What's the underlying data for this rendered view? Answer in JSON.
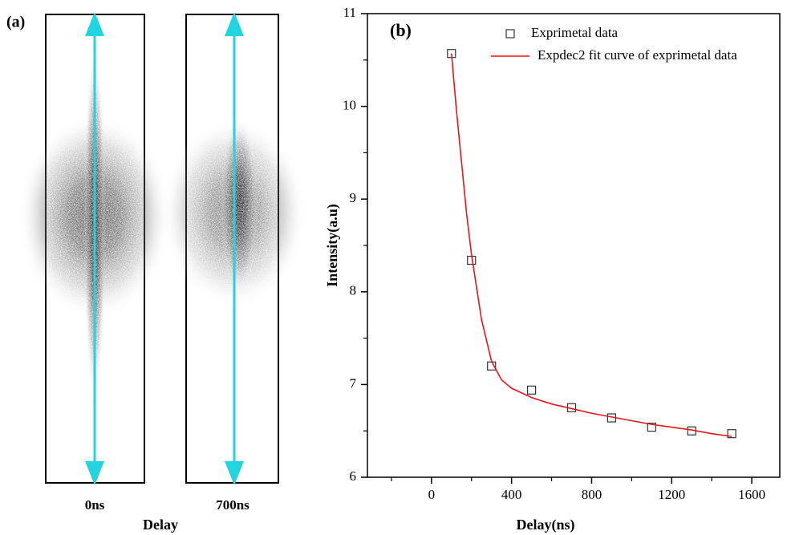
{
  "panel_a": {
    "label": "(a)",
    "captions": [
      "0ns",
      "700ns"
    ],
    "xlabel": "Delay"
  },
  "chart_data": {
    "type": "scatter",
    "title": "(b)",
    "xlabel": "Delay(ns)",
    "ylabel": "Intensity(a.u)",
    "xlim": [
      -320,
      1740
    ],
    "ylim": [
      6,
      11
    ],
    "xticks": [
      0,
      400,
      800,
      1200,
      1600
    ],
    "yticks": [
      6,
      7,
      8,
      9,
      10,
      11
    ],
    "xminorticks": [
      -200,
      200,
      600,
      1000,
      1400
    ],
    "yminorticks": [
      6.5,
      7.5,
      8.5,
      9.5,
      10.5
    ],
    "series": [
      {
        "name": "Exprimetal data",
        "type": "scatter",
        "color": "#333333",
        "x": [
          100,
          200,
          300,
          500,
          700,
          900,
          1100,
          1300,
          1500
        ],
        "values": [
          10.57,
          8.34,
          7.2,
          6.94,
          6.75,
          6.64,
          6.54,
          6.5,
          6.47
        ]
      },
      {
        "name": "Expdec2 fit curve of exprimetal data",
        "type": "line",
        "color": "#e8141b",
        "x": [
          100,
          125,
          150,
          175,
          200,
          250,
          300,
          350,
          400,
          500,
          600,
          700,
          800,
          900,
          1000,
          1100,
          1200,
          1300,
          1400,
          1500
        ],
        "values": [
          10.57,
          9.95,
          9.4,
          8.85,
          8.4,
          7.7,
          7.25,
          7.05,
          6.96,
          6.86,
          6.79,
          6.74,
          6.69,
          6.65,
          6.61,
          6.57,
          6.54,
          6.51,
          6.47,
          6.44
        ]
      }
    ]
  }
}
